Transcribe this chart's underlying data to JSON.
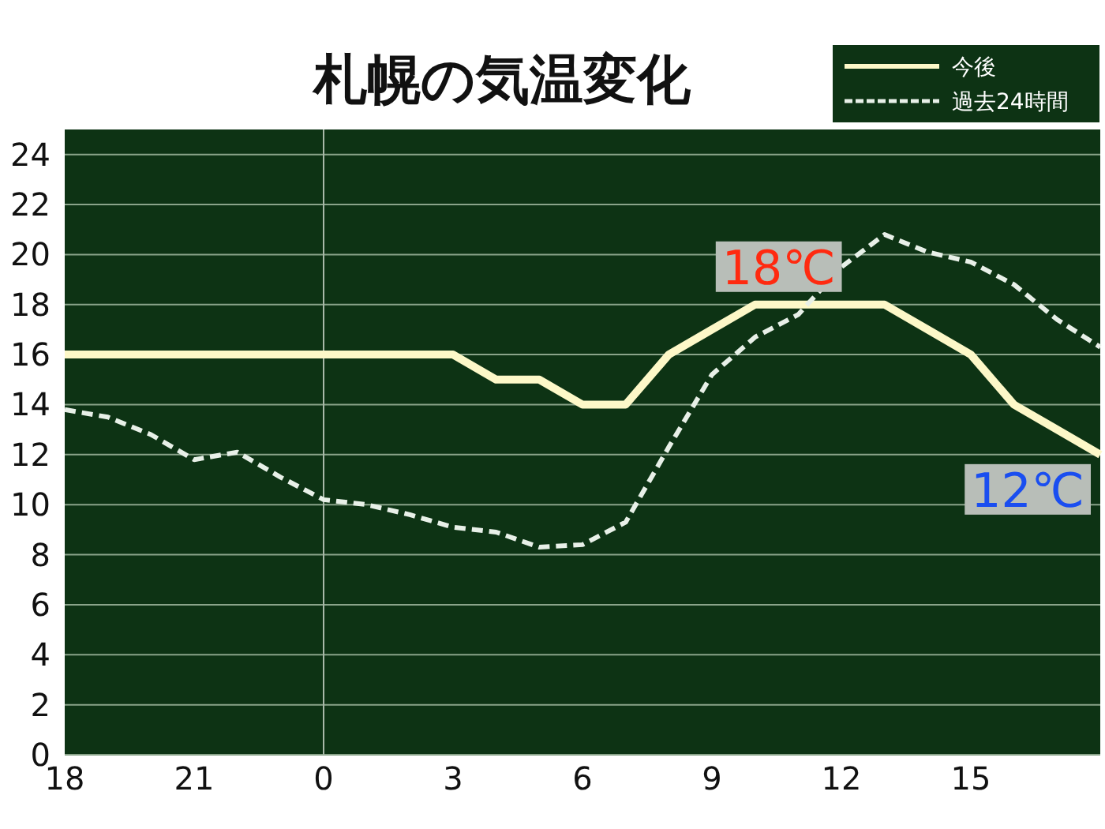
{
  "chart_data": {
    "type": "line",
    "title": "札幌の気温変化",
    "categories": [
      "18",
      null,
      null,
      "21",
      null,
      null,
      "0",
      null,
      null,
      "3",
      null,
      null,
      "6",
      null,
      null,
      "9",
      null,
      null,
      "12",
      null,
      null,
      "15",
      null,
      null,
      null
    ],
    "series": [
      {
        "name": "今後",
        "color": "#fdf8c8",
        "line_style": "solid",
        "values": [
          16,
          16,
          16,
          16,
          16,
          16,
          16,
          16,
          16,
          16,
          15,
          15,
          14,
          14,
          16,
          17,
          18,
          18,
          18,
          18,
          17,
          16,
          14,
          13,
          12
        ]
      },
      {
        "name": "過去24時間",
        "color": "#e8f0e8",
        "line_style": "dashed",
        "values": [
          13.8,
          13.5,
          12.8,
          11.8,
          12.1,
          11.1,
          10.2,
          10.0,
          9.6,
          9.1,
          8.9,
          8.3,
          8.4,
          9.3,
          12.3,
          15.2,
          16.7,
          17.6,
          19.5,
          20.8,
          20.1,
          19.7,
          18.8,
          17.4,
          16.3
        ]
      }
    ],
    "ylim": [
      0,
      25
    ],
    "yticks": [
      0,
      2,
      4,
      6,
      8,
      10,
      12,
      14,
      16,
      18,
      20,
      22,
      24
    ],
    "grid": "y",
    "ref_lines": [
      {
        "axis": "x",
        "value": "0",
        "color": "#a8b8a8"
      }
    ],
    "legend": "top right",
    "annotations": [
      {
        "text": "18℃",
        "y": 18
      },
      "12℃"
    ]
  }
}
